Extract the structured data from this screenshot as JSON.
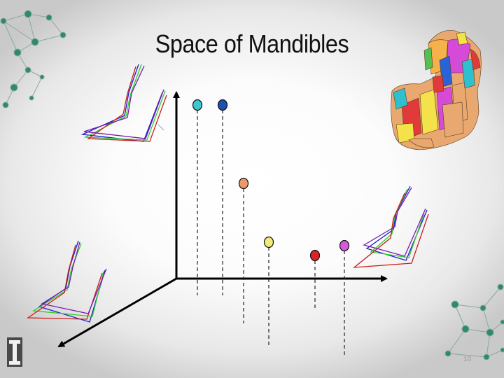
{
  "slide": {
    "title": "Space of Mandibles",
    "page_number": "10"
  },
  "diagram": {
    "axes": [
      "vertical-axis",
      "horizontal-axis",
      "depth-axis"
    ],
    "points": [
      {
        "name": "cyan",
        "color": "#3dc8cf"
      },
      {
        "name": "blue",
        "color": "#1e4fb3"
      },
      {
        "name": "orange",
        "color": "#ea9a6a"
      },
      {
        "name": "yellow",
        "color": "#f2ea7a"
      },
      {
        "name": "red",
        "color": "#d8232a"
      },
      {
        "name": "magenta",
        "color": "#d35ad9"
      }
    ],
    "mandible_outline_colors": [
      "#1b1bcc",
      "#2bcf2b",
      "#cc1b1b",
      "#7a1bb0"
    ],
    "logo": "university-block-i-logo"
  }
}
